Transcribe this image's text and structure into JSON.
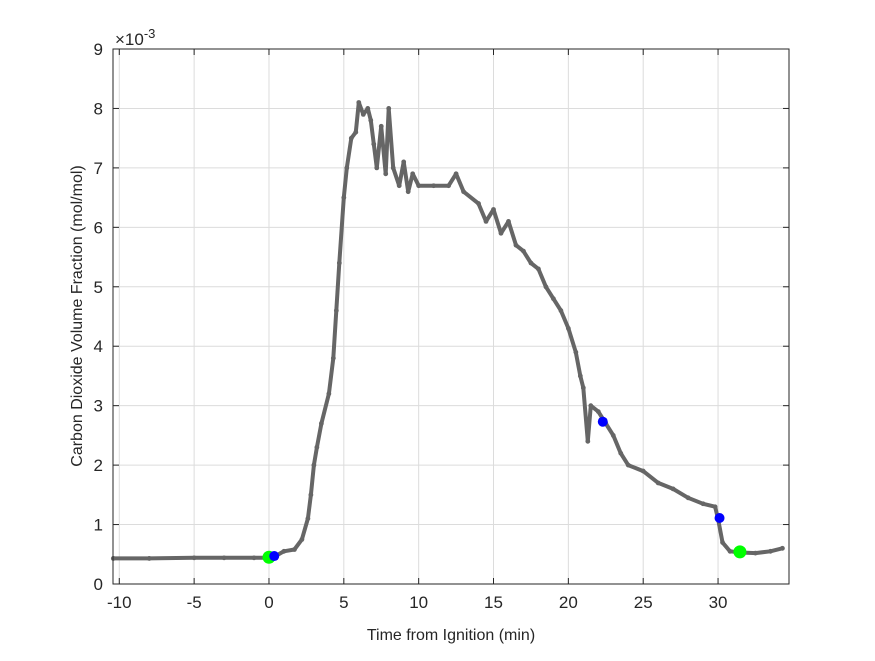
{
  "chart_data": {
    "type": "line",
    "title": "",
    "xlabel": "Time from Ignition (min)",
    "ylabel": "Carbon Dioxide Volume Fraction (mol/mol)",
    "y_exponent_label": "×10",
    "y_exponent": "-3",
    "xlim": [
      -10.42,
      34.74
    ],
    "ylim": [
      0,
      0.009
    ],
    "xticks": [
      -10,
      -5,
      0,
      5,
      10,
      15,
      20,
      25,
      30
    ],
    "yticks": [
      0,
      0.001,
      0.002,
      0.003,
      0.004,
      0.005,
      0.006,
      0.007,
      0.008,
      0.009
    ],
    "ytick_labels": [
      "0",
      "1",
      "2",
      "3",
      "4",
      "5",
      "6",
      "7",
      "8",
      "9"
    ],
    "grid": true,
    "colors": {
      "series": "#666666",
      "start_end_markers": "#00ff00",
      "event_markers": "#0000ff"
    },
    "series": [
      {
        "x": [
          -10.4,
          -8,
          -5,
          -3,
          -1,
          0,
          0.5,
          1,
          1.7,
          2.2,
          2.6,
          2.8,
          3,
          3.2,
          3.5,
          4,
          4.3,
          4.5,
          4.7,
          5,
          5.2,
          5.5,
          5.8,
          6.0,
          6.3,
          6.6,
          6.8,
          7.0,
          7.2,
          7.5,
          7.8,
          8.0,
          8.3,
          8.7,
          9.0,
          9.3,
          9.6,
          10,
          11,
          12,
          12.5,
          13,
          14,
          14.5,
          15,
          15.5,
          16,
          16.5,
          17,
          17.5,
          18,
          18.5,
          19,
          19.5,
          20,
          20.5,
          20.8,
          21,
          21.3,
          21.5,
          22,
          22.5,
          23,
          23.5,
          24,
          25,
          26,
          27,
          28,
          29,
          29.8,
          30,
          30.3,
          30.8,
          31.5,
          32.5,
          33.5,
          34.3
        ],
        "y": [
          0.00043,
          0.00043,
          0.00044,
          0.00044,
          0.00044,
          0.00044,
          0.00048,
          0.00055,
          0.00058,
          0.00075,
          0.0011,
          0.0015,
          0.002,
          0.0023,
          0.0027,
          0.0032,
          0.0038,
          0.0046,
          0.0054,
          0.0065,
          0.007,
          0.0075,
          0.0076,
          0.0081,
          0.0079,
          0.008,
          0.0078,
          0.0074,
          0.007,
          0.0077,
          0.0069,
          0.008,
          0.007,
          0.0067,
          0.0071,
          0.0066,
          0.0069,
          0.0067,
          0.0067,
          0.0067,
          0.0069,
          0.0066,
          0.0064,
          0.0061,
          0.0063,
          0.0059,
          0.0061,
          0.0057,
          0.0056,
          0.0054,
          0.0053,
          0.005,
          0.0048,
          0.0046,
          0.0043,
          0.0039,
          0.0035,
          0.0033,
          0.0024,
          0.003,
          0.0029,
          0.0027,
          0.0025,
          0.0022,
          0.002,
          0.0019,
          0.0017,
          0.0016,
          0.00145,
          0.00135,
          0.0013,
          0.0011,
          0.0007,
          0.00055,
          0.00053,
          0.00052,
          0.00055,
          0.0006
        ]
      }
    ],
    "markers": [
      {
        "x": 0,
        "y": 0.00045,
        "color": "#00ff00",
        "size": "large"
      },
      {
        "x": 31.46,
        "y": 0.00054,
        "color": "#00ff00",
        "size": "large"
      },
      {
        "x": 0.35,
        "y": 0.00047,
        "color": "#0000ff",
        "size": "small"
      },
      {
        "x": 22.3,
        "y": 0.00273,
        "color": "#0000ff",
        "size": "small"
      },
      {
        "x": 30.1,
        "y": 0.00111,
        "color": "#0000ff",
        "size": "small"
      }
    ]
  }
}
